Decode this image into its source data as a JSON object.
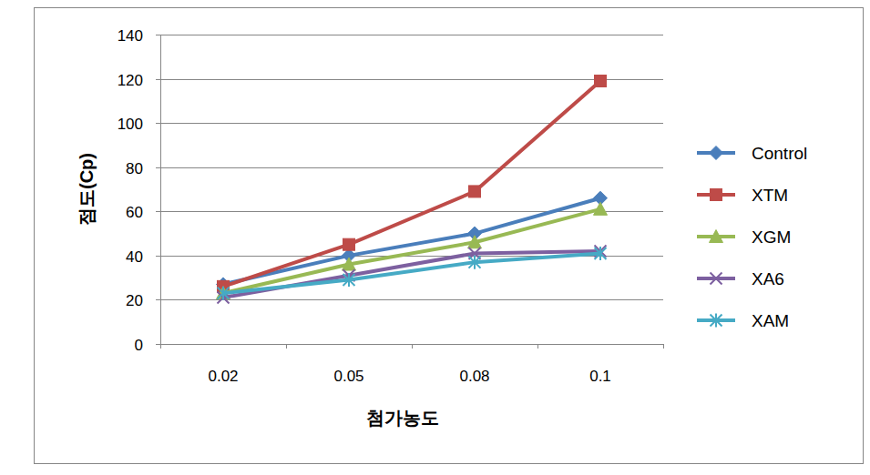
{
  "chart_data": {
    "type": "line",
    "x_label": "첨가농도",
    "y_label": "점도(Cp)",
    "categories": [
      "0.02",
      "0.05",
      "0.08",
      "0.1"
    ],
    "series": [
      {
        "name": "Control",
        "color": "#4a7ebb",
        "marker": "diamond",
        "values": [
          27,
          40,
          50,
          66
        ]
      },
      {
        "name": "XTM",
        "color": "#be4b48",
        "marker": "square",
        "values": [
          26,
          45,
          69,
          119
        ]
      },
      {
        "name": "XGM",
        "color": "#98b954",
        "marker": "triangle",
        "values": [
          23,
          36,
          46,
          61
        ]
      },
      {
        "name": "XA6",
        "color": "#7d60a0",
        "marker": "x",
        "values": [
          21,
          31,
          41,
          42
        ]
      },
      {
        "name": "XAM",
        "color": "#46aac5",
        "marker": "asterisk",
        "values": [
          23,
          29,
          37,
          41
        ]
      }
    ],
    "ylim": [
      0,
      140
    ],
    "yticks": [
      0,
      20,
      40,
      60,
      80,
      100,
      120,
      140
    ],
    "grid": true,
    "legend": "right"
  }
}
